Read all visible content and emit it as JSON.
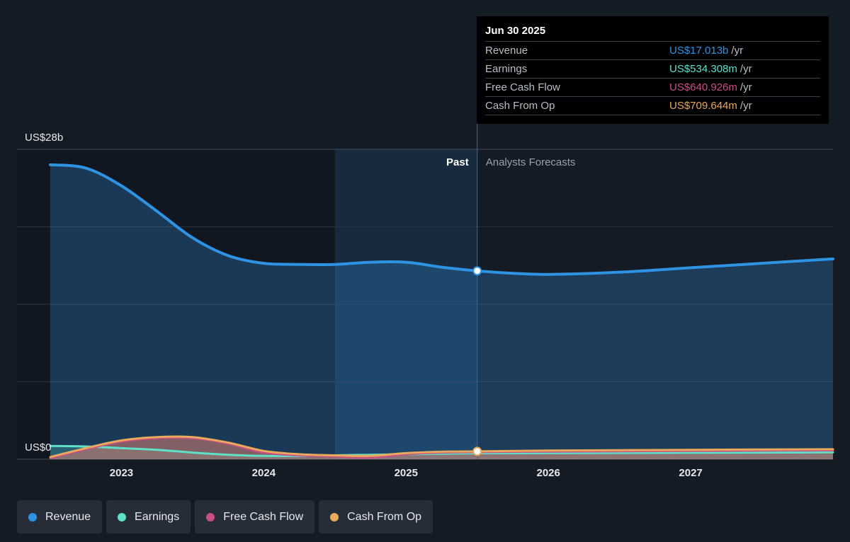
{
  "colors": {
    "revenue": "#2f93e3",
    "earnings": "#5fe0c8",
    "free_cash_flow": "#c94e86",
    "cash_from_op": "#e8a95c",
    "background": "#151b24"
  },
  "tooltip": {
    "date": "Jun 30 2025",
    "rows": [
      {
        "label": "Revenue",
        "value": "US$17.013b",
        "unit": "/yr"
      },
      {
        "label": "Earnings",
        "value": "US$534.308m",
        "unit": "/yr"
      },
      {
        "label": "Free Cash Flow",
        "value": "US$640.926m",
        "unit": "/yr"
      },
      {
        "label": "Cash From Op",
        "value": "US$709.644m",
        "unit": "/yr"
      }
    ]
  },
  "legend": [
    {
      "label": "Revenue",
      "color": "#2f93e3"
    },
    {
      "label": "Earnings",
      "color": "#5fe0c8"
    },
    {
      "label": "Free Cash Flow",
      "color": "#c94e86"
    },
    {
      "label": "Cash From Op",
      "color": "#e8a95c"
    }
  ],
  "chart_data": {
    "type": "area",
    "y_top_label": "US$28b",
    "y_bottom_label": "US$0",
    "ylim": [
      0,
      28
    ],
    "xlim": [
      2022.5,
      2028.0
    ],
    "x_ticks": [
      2023,
      2024,
      2025,
      2026,
      2027
    ],
    "x_tick_labels": [
      "2023",
      "2024",
      "2025",
      "2026",
      "2027"
    ],
    "past_label": "Past",
    "forecast_label": "Analysts Forecasts",
    "past_end": 2025.5,
    "highlight_start": 2024.5,
    "grid": true,
    "series": [
      {
        "name": "Revenue",
        "points": [
          [
            2022.5,
            26.6
          ],
          [
            2022.75,
            26.3
          ],
          [
            2023.0,
            24.7
          ],
          [
            2023.25,
            22.4
          ],
          [
            2023.5,
            20.0
          ],
          [
            2023.75,
            18.4
          ],
          [
            2024.0,
            17.7
          ],
          [
            2024.25,
            17.6
          ],
          [
            2024.5,
            17.6
          ],
          [
            2024.75,
            17.8
          ],
          [
            2025.0,
            17.8
          ],
          [
            2025.25,
            17.35
          ],
          [
            2025.5,
            17.013
          ],
          [
            2025.75,
            16.8
          ],
          [
            2026.0,
            16.7
          ],
          [
            2026.5,
            16.9
          ],
          [
            2027.0,
            17.3
          ],
          [
            2027.5,
            17.7
          ],
          [
            2028.0,
            18.1
          ]
        ]
      },
      {
        "name": "Earnings",
        "points": [
          [
            2022.5,
            1.2
          ],
          [
            2022.75,
            1.15
          ],
          [
            2023.0,
            1.0
          ],
          [
            2023.25,
            0.85
          ],
          [
            2023.5,
            0.6
          ],
          [
            2023.75,
            0.4
          ],
          [
            2024.0,
            0.3
          ],
          [
            2024.25,
            0.3
          ],
          [
            2024.5,
            0.35
          ],
          [
            2024.75,
            0.4
          ],
          [
            2025.0,
            0.45
          ],
          [
            2025.25,
            0.5
          ],
          [
            2025.5,
            0.534
          ],
          [
            2026.0,
            0.55
          ],
          [
            2026.5,
            0.57
          ],
          [
            2027.0,
            0.58
          ],
          [
            2027.5,
            0.6
          ],
          [
            2028.0,
            0.62
          ]
        ]
      },
      {
        "name": "Free Cash Flow",
        "points": [
          [
            2022.5,
            0.1
          ],
          [
            2022.75,
            0.9
          ],
          [
            2023.0,
            1.6
          ],
          [
            2023.25,
            1.9
          ],
          [
            2023.5,
            1.9
          ],
          [
            2023.75,
            1.4
          ],
          [
            2024.0,
            0.6
          ],
          [
            2024.25,
            0.35
          ],
          [
            2024.5,
            0.25
          ],
          [
            2024.75,
            0.15
          ],
          [
            2025.0,
            0.45
          ],
          [
            2025.25,
            0.6
          ],
          [
            2025.5,
            0.641
          ],
          [
            2026.0,
            0.69
          ],
          [
            2026.5,
            0.72
          ],
          [
            2027.0,
            0.75
          ],
          [
            2027.5,
            0.78
          ],
          [
            2028.0,
            0.8
          ]
        ]
      },
      {
        "name": "Cash From Op",
        "points": [
          [
            2022.5,
            0.2
          ],
          [
            2022.75,
            1.0
          ],
          [
            2023.0,
            1.7
          ],
          [
            2023.25,
            2.0
          ],
          [
            2023.5,
            2.0
          ],
          [
            2023.75,
            1.5
          ],
          [
            2024.0,
            0.75
          ],
          [
            2024.25,
            0.45
          ],
          [
            2024.5,
            0.35
          ],
          [
            2024.75,
            0.3
          ],
          [
            2025.0,
            0.55
          ],
          [
            2025.25,
            0.68
          ],
          [
            2025.5,
            0.71
          ],
          [
            2026.0,
            0.78
          ],
          [
            2026.5,
            0.82
          ],
          [
            2027.0,
            0.85
          ],
          [
            2027.5,
            0.88
          ],
          [
            2028.0,
            0.9
          ]
        ]
      }
    ]
  }
}
